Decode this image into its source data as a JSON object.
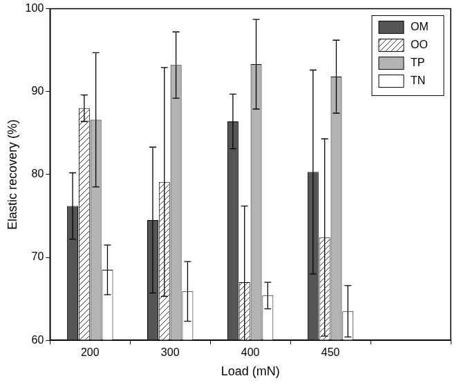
{
  "chart_data": {
    "type": "bar",
    "x_label": "Load (mN)",
    "y_label": "Elastic recovery (%)",
    "categories": [
      "200",
      "300",
      "400",
      "450",
      null
    ],
    "series": [
      {
        "name": "OM",
        "color": "#555555",
        "values": [
          76.2,
          74.5,
          86.4,
          80.3,
          null
        ],
        "errors": [
          4.0,
          8.8,
          3.3,
          12.3,
          null
        ]
      },
      {
        "name": "OO",
        "color": "#ffffff",
        "marker": "hatch",
        "values": [
          88.0,
          79.1,
          67.0,
          72.4,
          null
        ],
        "errors": [
          1.6,
          13.8,
          9.2,
          11.9,
          null
        ]
      },
      {
        "name": "TP",
        "color": "#b3b3b3",
        "values": [
          86.6,
          93.2,
          93.3,
          91.8,
          null
        ],
        "errors": [
          8.1,
          4.0,
          5.4,
          4.4,
          null
        ]
      },
      {
        "name": "TN",
        "color": "#ffffff",
        "values": [
          68.5,
          65.9,
          65.4,
          63.5,
          null
        ],
        "errors": [
          3.0,
          3.6,
          1.6,
          3.1,
          null
        ]
      }
    ],
    "ylim": [
      60,
      100
    ],
    "yticks": [
      60,
      70,
      80,
      90,
      100
    ],
    "grid": false,
    "legend": "top-right"
  }
}
